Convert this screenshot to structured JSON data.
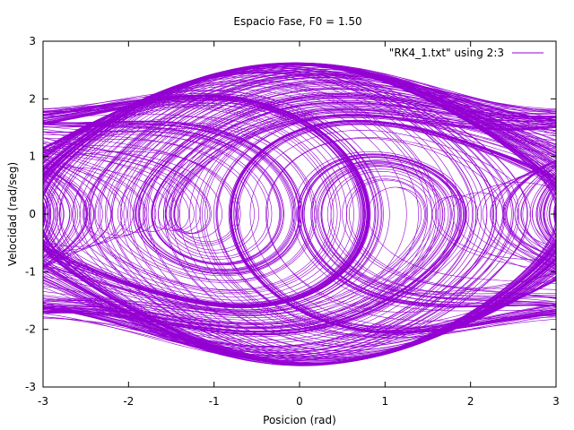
{
  "chart_data": {
    "type": "line",
    "title": "Espacio Fase, F0 = 1.50",
    "xlabel": "Posicion (rad)",
    "ylabel": "Velocidad (rad/seg)",
    "xlim": [
      -3,
      3
    ],
    "ylim": [
      -3,
      3
    ],
    "xticks": [
      -3,
      -2,
      -1,
      0,
      1,
      2,
      3
    ],
    "yticks": [
      -3,
      -2,
      -1,
      0,
      1,
      2,
      3
    ],
    "grid": false,
    "legend_position": "top-right",
    "series": [
      {
        "name": "\"RK4_1.txt\" using 2:3",
        "color": "#9400d3",
        "description_points": {
          "x": [
            -3.0,
            -2.5,
            -2.0,
            -1.5,
            -1.0,
            -0.5,
            0.0,
            0.5,
            1.0,
            1.5,
            2.0,
            2.5,
            3.0
          ],
          "y_upper_envelope": [
            1.82,
            1.88,
            2.0,
            2.25,
            2.45,
            2.56,
            2.62,
            2.56,
            2.45,
            2.25,
            2.0,
            1.88,
            1.82
          ],
          "y_lower_envelope": [
            -1.82,
            -1.88,
            -2.0,
            -2.25,
            -2.45,
            -2.56,
            -2.62,
            -2.56,
            -2.45,
            -2.25,
            -2.0,
            -1.88,
            -1.82
          ]
        }
      }
    ]
  }
}
